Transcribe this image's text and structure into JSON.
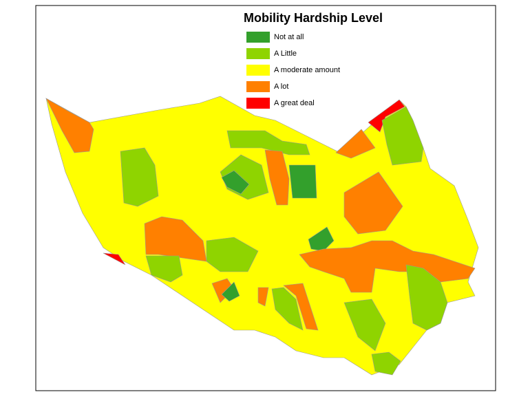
{
  "title": "Mobility Hardship Level",
  "legend": [
    {
      "label": "Not at all",
      "color": "#33a02c"
    },
    {
      "label": "A Little",
      "color": "#8fd400"
    },
    {
      "label": "A moderate amount",
      "color": "#ffff00"
    },
    {
      "label": "A lot",
      "color": "#ff8000"
    },
    {
      "label": "A great deal",
      "color": "#ff0000"
    }
  ]
}
